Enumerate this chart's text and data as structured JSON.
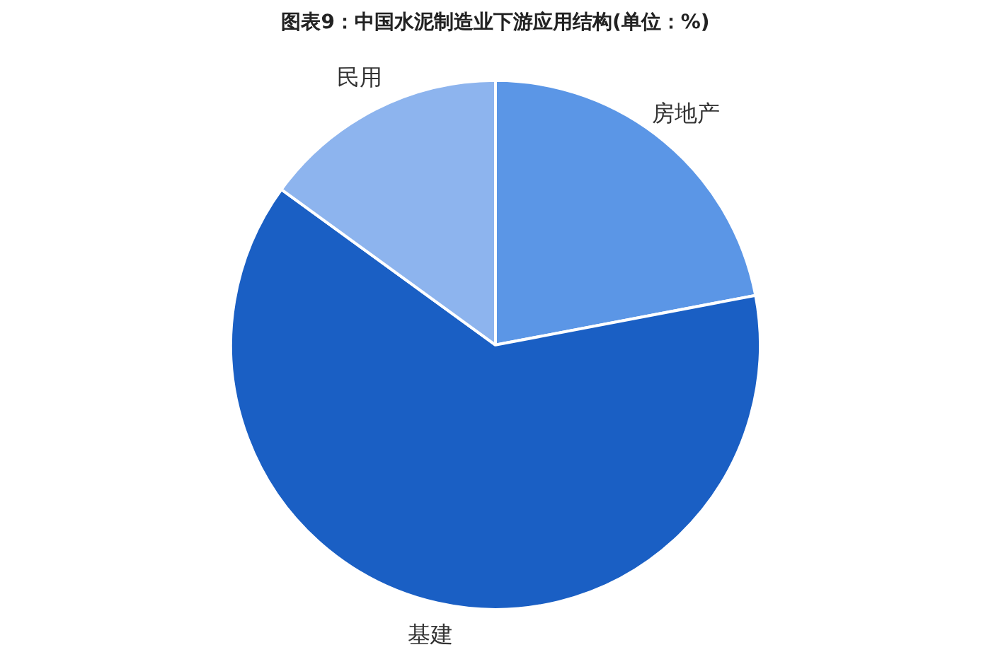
{
  "chart_data": {
    "type": "pie",
    "title": "图表9：中国水泥制造业下游应用结构(单位：%)",
    "categories": [
      "房地产",
      "基建",
      "民用"
    ],
    "values": [
      22,
      63,
      15
    ],
    "colors": [
      "#5b96e6",
      "#1a5fc4",
      "#8db4ee"
    ]
  }
}
